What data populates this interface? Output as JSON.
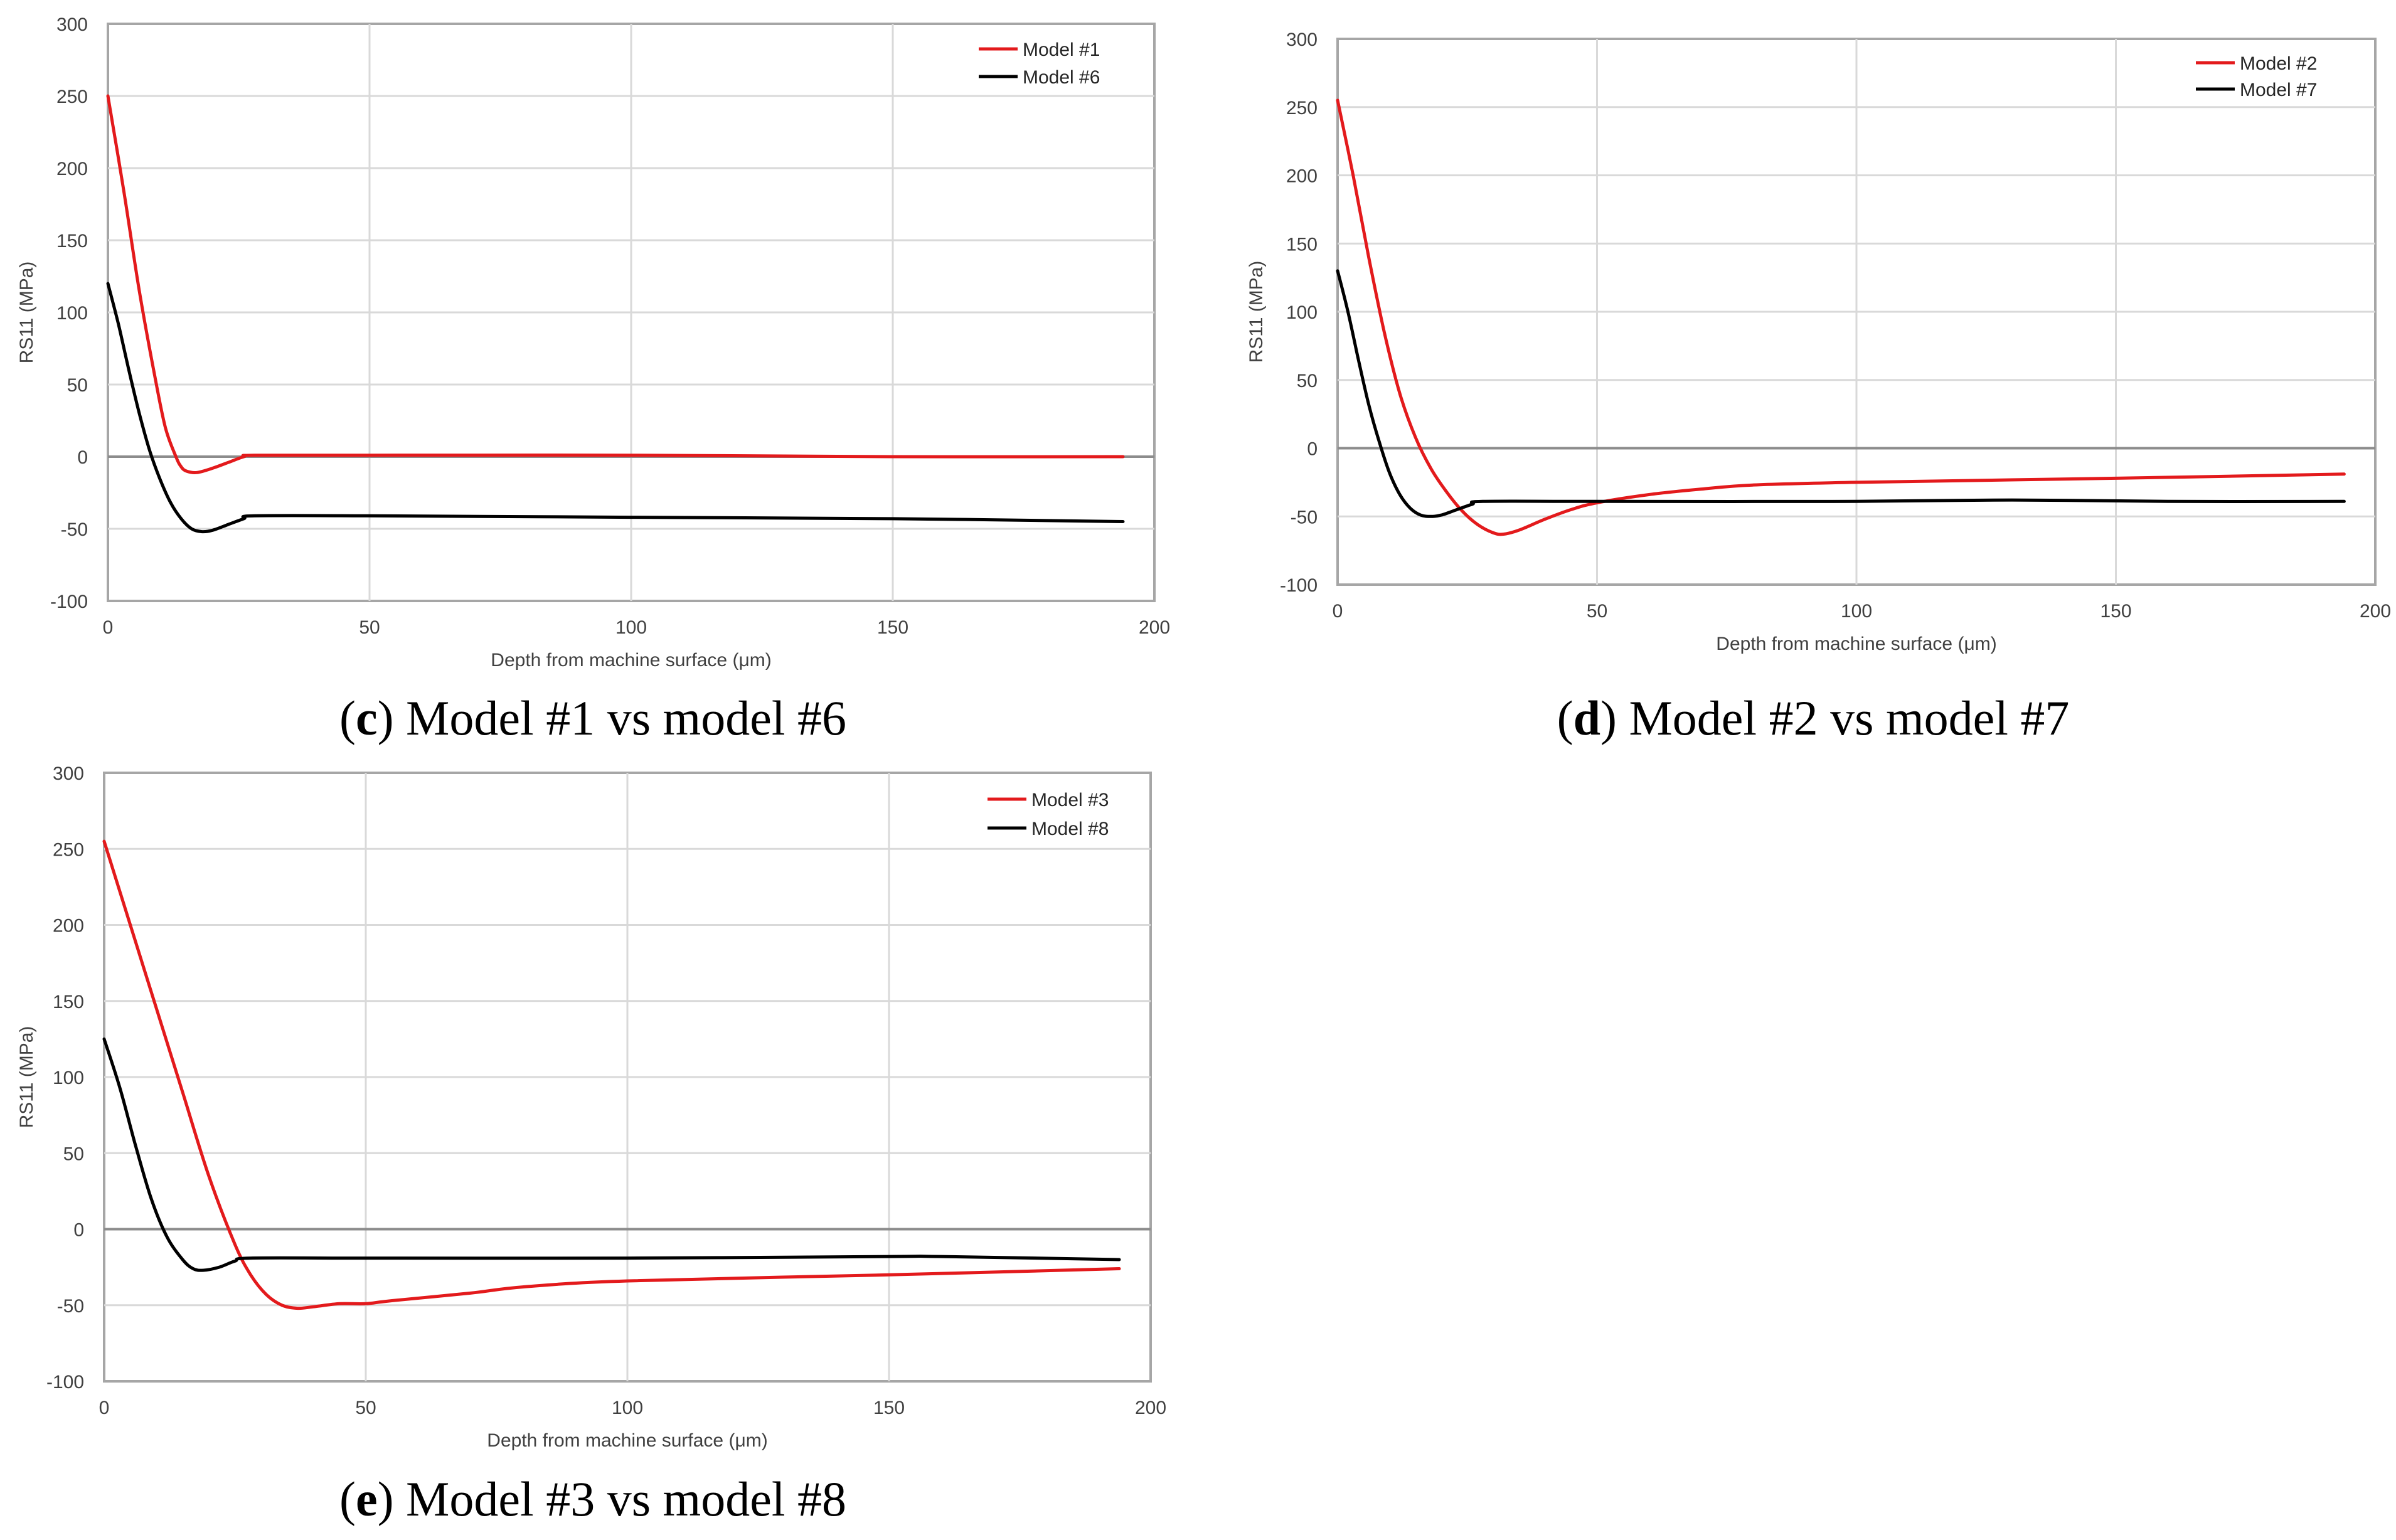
{
  "colors": {
    "red_series": "#e31a1c",
    "black_series": "#000000"
  },
  "chart_data": [
    {
      "id": "c",
      "type": "line",
      "caption_letter": "c",
      "caption_rest": ") Model #1 vs model #6",
      "xlabel": "Depth from machine surface (μm)",
      "ylabel": "RS11 (MPa)",
      "xlim": [
        0,
        200
      ],
      "ylim": [
        -100,
        300
      ],
      "x_ticks": [
        "0",
        "50",
        "100",
        "150",
        "200"
      ],
      "y_ticks": [
        "300",
        "250",
        "200",
        "150",
        "100",
        "50",
        "0",
        "-50",
        "-100"
      ],
      "legend_position": "top-right",
      "series": [
        {
          "name": "Model #1",
          "color": "#e31a1c",
          "points": [
            [
              0,
              250
            ],
            [
              3,
              185
            ],
            [
              6,
              115
            ],
            [
              9,
              55
            ],
            [
              11,
              20
            ],
            [
              13,
              0
            ],
            [
              14,
              -7
            ],
            [
              15,
              -10
            ],
            [
              17,
              -11
            ],
            [
              20,
              -8
            ],
            [
              23,
              -4
            ],
            [
              26,
              0
            ],
            [
              28,
              1
            ],
            [
              50,
              1
            ],
            [
              100,
              1
            ],
            [
              150,
              0
            ],
            [
              194,
              0
            ]
          ]
        },
        {
          "name": "Model #6",
          "color": "#000000",
          "points": [
            [
              0,
              120
            ],
            [
              2,
              92
            ],
            [
              4,
              60
            ],
            [
              6,
              30
            ],
            [
              8,
              4
            ],
            [
              10,
              -16
            ],
            [
              12,
              -32
            ],
            [
              14,
              -43
            ],
            [
              16,
              -50
            ],
            [
              18,
              -52
            ],
            [
              20,
              -51
            ],
            [
              23,
              -47
            ],
            [
              26,
              -43
            ],
            [
              28,
              -41
            ],
            [
              50,
              -41
            ],
            [
              100,
              -42
            ],
            [
              150,
              -43
            ],
            [
              194,
              -45
            ]
          ]
        }
      ]
    },
    {
      "id": "d",
      "type": "line",
      "caption_letter": "d",
      "caption_rest": ") Model #2 vs model #7",
      "xlabel": "Depth from machine surface (μm)",
      "ylabel": "RS11 (MPa)",
      "xlim": [
        0,
        200
      ],
      "ylim": [
        -100,
        300
      ],
      "x_ticks": [
        "0",
        "50",
        "100",
        "150",
        "200"
      ],
      "y_ticks": [
        "300",
        "250",
        "200",
        "150",
        "100",
        "50",
        "0",
        "-50",
        "-100"
      ],
      "legend_position": "top-right",
      "series": [
        {
          "name": "Model #2",
          "color": "#e31a1c",
          "points": [
            [
              0,
              255
            ],
            [
              3,
              200
            ],
            [
              6,
              140
            ],
            [
              9,
              85
            ],
            [
              12,
              40
            ],
            [
              15,
              8
            ],
            [
              18,
              -15
            ],
            [
              21,
              -32
            ],
            [
              24,
              -46
            ],
            [
              27,
              -56
            ],
            [
              30,
              -62
            ],
            [
              32,
              -63
            ],
            [
              35,
              -60
            ],
            [
              40,
              -52
            ],
            [
              45,
              -45
            ],
            [
              50,
              -40
            ],
            [
              60,
              -34
            ],
            [
              70,
              -30
            ],
            [
              80,
              -27
            ],
            [
              100,
              -25
            ],
            [
              150,
              -22
            ],
            [
              194,
              -19
            ]
          ]
        },
        {
          "name": "Model #7",
          "color": "#000000",
          "points": [
            [
              0,
              130
            ],
            [
              2,
              100
            ],
            [
              4,
              65
            ],
            [
              6,
              32
            ],
            [
              8,
              5
            ],
            [
              10,
              -18
            ],
            [
              12,
              -34
            ],
            [
              14,
              -44
            ],
            [
              16,
              -49
            ],
            [
              18,
              -50
            ],
            [
              20,
              -49
            ],
            [
              23,
              -45
            ],
            [
              26,
              -41
            ],
            [
              28,
              -39
            ],
            [
              50,
              -39
            ],
            [
              100,
              -39
            ],
            [
              130,
              -38
            ],
            [
              160,
              -39
            ],
            [
              194,
              -39
            ]
          ]
        }
      ]
    },
    {
      "id": "e",
      "type": "line",
      "caption_letter": "e",
      "caption_rest": ") Model #3 vs model #8",
      "xlabel": "Depth from machine surface (μm)",
      "ylabel": "RS11 (MPa)",
      "xlim": [
        0,
        200
      ],
      "ylim": [
        -100,
        300
      ],
      "x_ticks": [
        "0",
        "50",
        "100",
        "150",
        "200"
      ],
      "y_ticks": [
        "300",
        "250",
        "200",
        "150",
        "100",
        "50",
        "0",
        "-50",
        "-100"
      ],
      "legend_position": "top-right",
      "series": [
        {
          "name": "Model #3",
          "color": "#e31a1c",
          "points": [
            [
              0,
              255
            ],
            [
              5,
              200
            ],
            [
              10,
              145
            ],
            [
              15,
              90
            ],
            [
              20,
              35
            ],
            [
              25,
              -10
            ],
            [
              28,
              -30
            ],
            [
              31,
              -43
            ],
            [
              34,
              -50
            ],
            [
              37,
              -52
            ],
            [
              40,
              -51
            ],
            [
              45,
              -49
            ],
            [
              50,
              -49
            ],
            [
              55,
              -47
            ],
            [
              70,
              -42
            ],
            [
              80,
              -38
            ],
            [
              100,
              -34
            ],
            [
              150,
              -30
            ],
            [
              194,
              -26
            ]
          ]
        },
        {
          "name": "Model #8",
          "color": "#000000",
          "points": [
            [
              0,
              125
            ],
            [
              3,
              93
            ],
            [
              6,
              55
            ],
            [
              9,
              20
            ],
            [
              12,
              -5
            ],
            [
              15,
              -20
            ],
            [
              17,
              -26
            ],
            [
              19,
              -27
            ],
            [
              22,
              -25
            ],
            [
              25,
              -21
            ],
            [
              28,
              -19
            ],
            [
              50,
              -19
            ],
            [
              100,
              -19
            ],
            [
              150,
              -18
            ],
            [
              160,
              -18
            ],
            [
              194,
              -20
            ]
          ]
        }
      ]
    }
  ]
}
